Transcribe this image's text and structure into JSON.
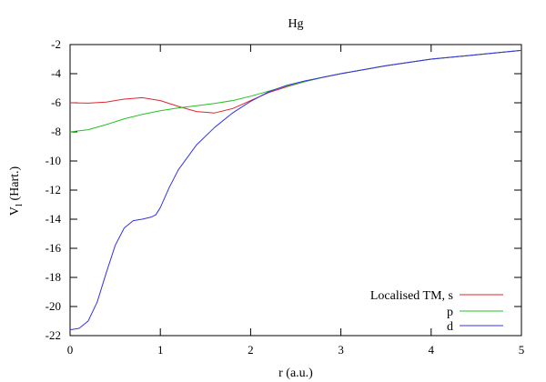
{
  "chart_data": {
    "type": "line",
    "title": "Hg",
    "xlabel": "r (a.u.)",
    "ylabel_main": "V",
    "ylabel_sub": "l",
    "ylabel_unit": " (Hart.)",
    "xlim": [
      0,
      5
    ],
    "ylim": [
      -22,
      -2
    ],
    "xticks": [
      0,
      1,
      2,
      3,
      4,
      5
    ],
    "yticks": [
      -2,
      -4,
      -6,
      -8,
      -10,
      -12,
      -14,
      -16,
      -18,
      -20,
      -22
    ],
    "grid": false,
    "legend_position": "bottom-right",
    "series": [
      {
        "name": "Localised TM, s",
        "color": "#e0262e",
        "x": [
          0,
          0.2,
          0.4,
          0.6,
          0.8,
          1.0,
          1.2,
          1.4,
          1.6,
          1.8,
          2.0,
          2.2,
          2.4,
          2.6,
          2.8,
          3.0,
          3.5,
          4.0,
          4.5,
          5.0
        ],
        "y": [
          -6.0,
          -6.02,
          -5.95,
          -5.75,
          -5.65,
          -5.85,
          -6.25,
          -6.6,
          -6.7,
          -6.4,
          -5.85,
          -5.3,
          -4.9,
          -4.55,
          -4.25,
          -4.0,
          -3.45,
          -3.0,
          -2.7,
          -2.4
        ]
      },
      {
        "name": "p",
        "color": "#22c322",
        "x": [
          0,
          0.2,
          0.4,
          0.6,
          0.8,
          1.0,
          1.2,
          1.4,
          1.6,
          1.8,
          2.0,
          2.2,
          2.4,
          2.6,
          2.8,
          3.0,
          3.5,
          4.0,
          4.5,
          5.0
        ],
        "y": [
          -8.0,
          -7.85,
          -7.5,
          -7.1,
          -6.8,
          -6.55,
          -6.35,
          -6.2,
          -6.05,
          -5.85,
          -5.55,
          -5.2,
          -4.85,
          -4.55,
          -4.25,
          -4.0,
          -3.45,
          -3.0,
          -2.7,
          -2.4
        ]
      },
      {
        "name": "d",
        "color": "#3434e6",
        "x": [
          0,
          0.1,
          0.2,
          0.3,
          0.4,
          0.5,
          0.6,
          0.7,
          0.8,
          0.9,
          0.95,
          1.0,
          1.1,
          1.2,
          1.4,
          1.6,
          1.8,
          2.0,
          2.2,
          2.4,
          2.6,
          2.8,
          3.0,
          3.5,
          4.0,
          4.5,
          5.0
        ],
        "y": [
          -21.6,
          -21.5,
          -21.0,
          -19.7,
          -17.7,
          -15.8,
          -14.6,
          -14.1,
          -14.0,
          -13.85,
          -13.7,
          -13.2,
          -11.8,
          -10.6,
          -8.9,
          -7.7,
          -6.7,
          -5.9,
          -5.25,
          -4.8,
          -4.5,
          -4.25,
          -4.0,
          -3.45,
          -3.0,
          -2.7,
          -2.4
        ]
      }
    ]
  }
}
